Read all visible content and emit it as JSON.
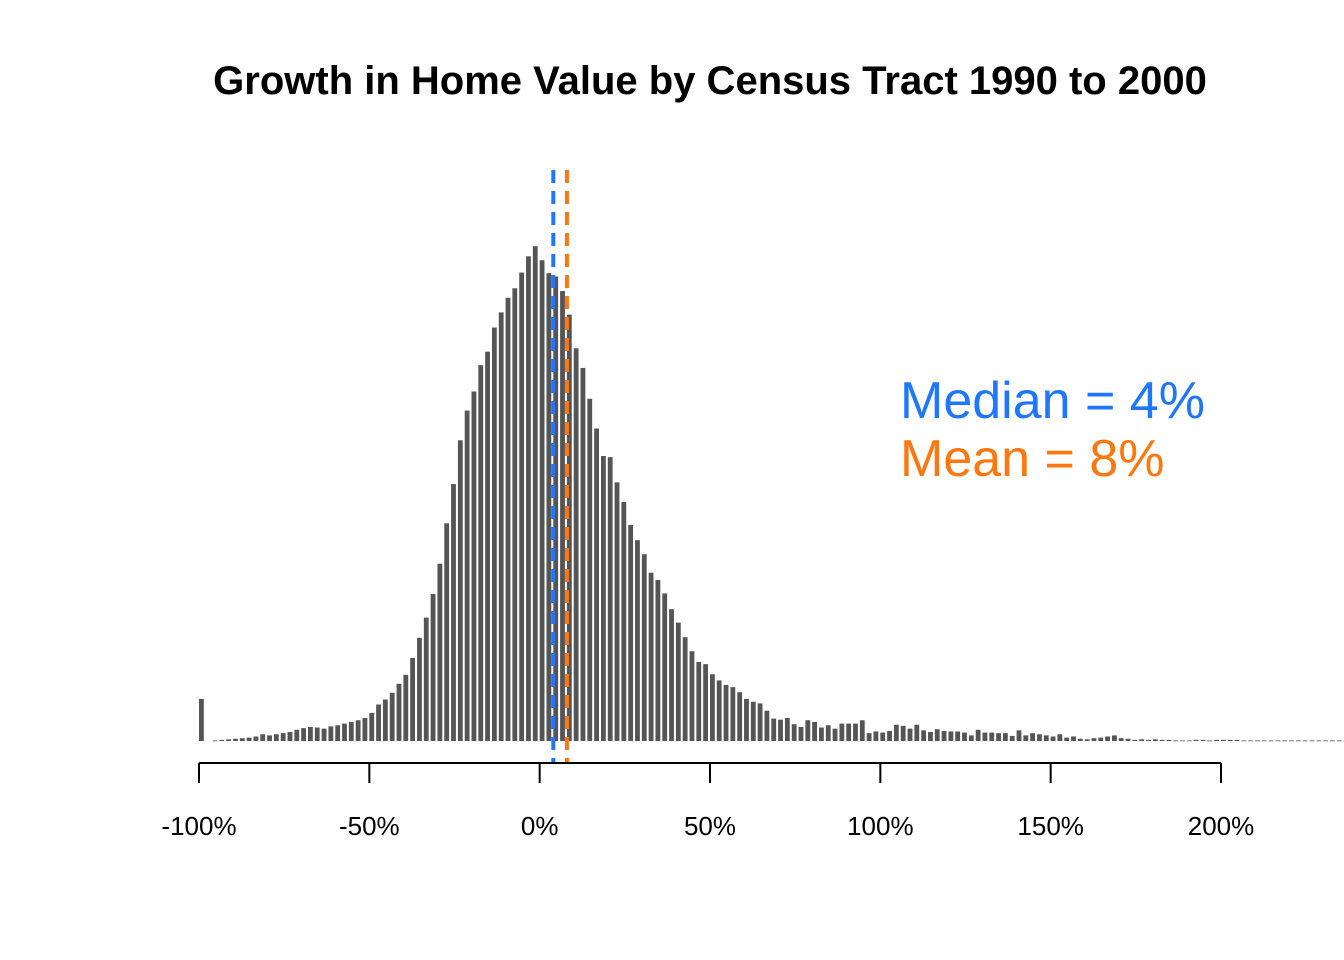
{
  "chart_data": {
    "type": "bar",
    "title": "Growth in Home Value by Census Tract 1990 to 2000",
    "xlabel": "",
    "ylabel": "",
    "xlim": [
      -100,
      200
    ],
    "ylim": [
      0,
      1000
    ],
    "bin_width": 2,
    "bin_start": -100,
    "x_ticks": [
      -100,
      -50,
      0,
      50,
      100,
      150,
      200
    ],
    "x_tick_labels": [
      "-100%",
      "-50%",
      "0%",
      "50%",
      "100%",
      "150%",
      "200%"
    ],
    "y_axis_shown": false,
    "grid": false,
    "bar_color": "#555555",
    "values": [
      75,
      0,
      1,
      2,
      3,
      4,
      5,
      6,
      8,
      12,
      10,
      12,
      14,
      16,
      20,
      23,
      25,
      24,
      22,
      26,
      28,
      31,
      34,
      37,
      41,
      50,
      65,
      74,
      86,
      102,
      118,
      148,
      184,
      220,
      262,
      316,
      388,
      458,
      536,
      589,
      623,
      670,
      694,
      737,
      764,
      790,
      807,
      835,
      864,
      882,
      857,
      834,
      828,
      802,
      760,
      700,
      665,
      610,
      557,
      508,
      506,
      461,
      426,
      385,
      358,
      333,
      300,
      287,
      263,
      235,
      211,
      185,
      160,
      141,
      137,
      119,
      108,
      100,
      96,
      87,
      75,
      70,
      67,
      54,
      40,
      38,
      41,
      30,
      25,
      37,
      34,
      24,
      28,
      22,
      31,
      31,
      31,
      37,
      14,
      17,
      15,
      18,
      29,
      27,
      22,
      29,
      19,
      16,
      21,
      18,
      17,
      17,
      15,
      10,
      20,
      15,
      15,
      14,
      14,
      9,
      19,
      10,
      14,
      12,
      10,
      8,
      12,
      6,
      8,
      4,
      3,
      5,
      6,
      8,
      10,
      5,
      4,
      2,
      3,
      2,
      3,
      2,
      2,
      1,
      1,
      1,
      2,
      2,
      1,
      2,
      2,
      2,
      2,
      1,
      1,
      1,
      1,
      1,
      1,
      1,
      1,
      1,
      1,
      1,
      1,
      1,
      1,
      1,
      1,
      1,
      1,
      1,
      1,
      1,
      1,
      1,
      1,
      1,
      1,
      1,
      1,
      1,
      1
    ],
    "reference_lines": [
      {
        "name": "Median",
        "x": 4,
        "color": "#1f77ff",
        "style": "dashed",
        "label": "Median = 4%"
      },
      {
        "name": "Mean",
        "x": 8,
        "color": "#ff7710",
        "style": "dashed",
        "label": "Mean = 8%"
      }
    ],
    "annotations": [
      {
        "text": "Median = 4%",
        "color": "#1f77ff"
      },
      {
        "text": "Mean = 8%",
        "color": "#ff7710"
      }
    ]
  }
}
